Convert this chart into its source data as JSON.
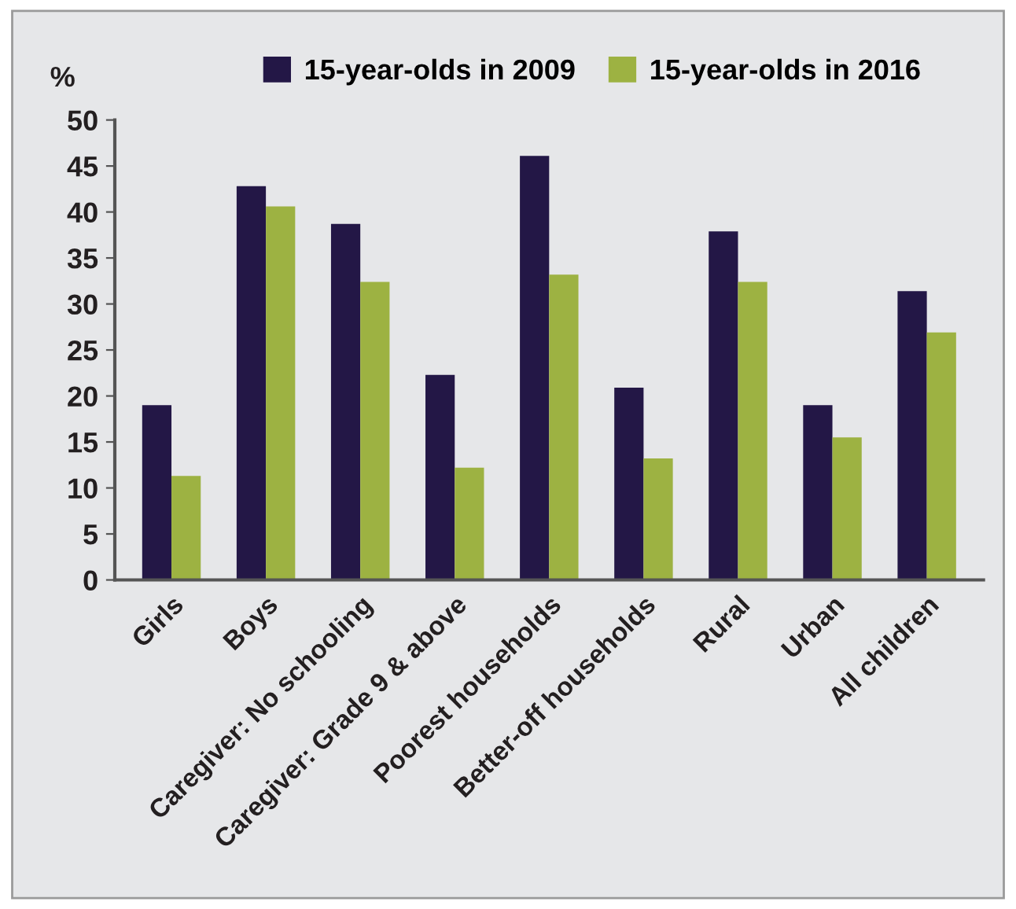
{
  "chart_data": {
    "type": "bar",
    "ylabel": "%",
    "categories": [
      "Girls",
      "Boys",
      "Caregiver: No schooling",
      "Caregiver: Grade 9 & above",
      "Poorest households",
      "Better-off households",
      "Rural",
      "Urban",
      "All children"
    ],
    "series": [
      {
        "name": "15-year-olds in 2009",
        "color": "#231746",
        "values": [
          19.0,
          42.8,
          38.7,
          22.3,
          46.1,
          20.9,
          37.9,
          19.0,
          31.4
        ]
      },
      {
        "name": "15-year-olds in 2016",
        "color": "#9db242",
        "values": [
          11.3,
          40.6,
          32.4,
          12.2,
          33.2,
          13.2,
          32.4,
          15.5,
          26.9
        ]
      }
    ],
    "ylim": [
      0,
      50
    ],
    "yticks": [
      0,
      5,
      10,
      15,
      20,
      25,
      30,
      35,
      40,
      45,
      50
    ],
    "grid": false,
    "legend": "top"
  }
}
